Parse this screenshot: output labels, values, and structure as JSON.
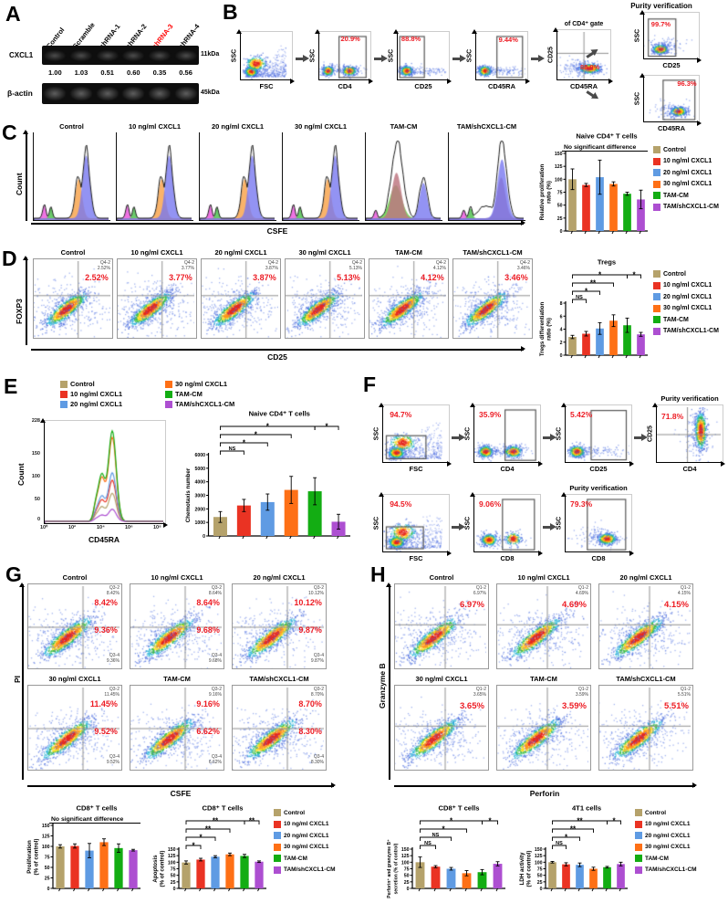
{
  "groups": {
    "names": [
      "Control",
      "10 ng/ml CXCL1",
      "20 ng/ml CXCL1",
      "30 ng/ml CXCL1",
      "TAM-CM",
      "TAM/shCXCL1-CM"
    ],
    "colors": [
      "#b5a26b",
      "#ea3323",
      "#5f9be3",
      "#fe7016",
      "#13ad13",
      "#ad4fd1"
    ]
  },
  "accent": {
    "percent_red": "#ed1c24",
    "highlight_red": "#ff0000"
  },
  "panel_a": {
    "label": "A",
    "lanes": [
      "Control",
      "Scramble",
      "shRNA-1",
      "shRNA-2",
      "shRNA-3",
      "shRNA-4"
    ],
    "band1": {
      "protein": "CXCL1",
      "kda": "11kDa"
    },
    "band2": {
      "protein": "β-actin",
      "kda": "45kDa"
    },
    "values": [
      "1.00",
      "1.03",
      "0.51",
      "0.60",
      "0.35",
      "0.56"
    ]
  },
  "panel_b": {
    "label": "B",
    "purity_title": "Purity verification",
    "plots": [
      {
        "y": "SSC",
        "x": "FSC",
        "pct": ""
      },
      {
        "y": "SSC",
        "x": "CD4",
        "pct": "20.9%"
      },
      {
        "y": "SSC",
        "x": "CD25",
        "pct": "88.8%"
      },
      {
        "y": "SSC",
        "x": "CD45RA",
        "pct": "9.44%"
      },
      {
        "y": "CD25",
        "x": "CD45RA",
        "pct": "88.9%",
        "note": "of CD4⁺ gate"
      },
      {
        "y": "SSC",
        "x": "CD25",
        "pct": "99.7%"
      },
      {
        "y": "SSC",
        "x": "CD45RA",
        "pct": "96.3%"
      }
    ]
  },
  "panel_c": {
    "label": "C",
    "ylabel": "Count",
    "xlabel": "CSFE",
    "plots": [
      {
        "title": "Control",
        "hist": "std"
      },
      {
        "title": "10 ng/ml CXCL1",
        "hist": "std"
      },
      {
        "title": "20 ng/ml CXCL1",
        "hist": "std"
      },
      {
        "title": "30 ng/ml CXCL1",
        "hist": "std"
      },
      {
        "title": "TAM-CM",
        "hist": "tam"
      },
      {
        "title": "TAM/shCXCL1-CM",
        "hist": "shtam"
      }
    ],
    "chart": {
      "type": "bar",
      "title": "Naive CD4⁺ T cells",
      "note": "No significant difference",
      "ylabel": "Relative proliferation\nratio (%)",
      "ymax": 150,
      "ystep": 25,
      "values": [
        100,
        89,
        104,
        91,
        72,
        61
      ],
      "errors": [
        20,
        3,
        33,
        4,
        3,
        18
      ],
      "sig": []
    }
  },
  "panel_d": {
    "label": "D",
    "ylabel": "FOXP3",
    "xlabel": "CD25",
    "plots": [
      {
        "title": "Control",
        "q": "Q4-2",
        "qv": "2.52%",
        "pct": "2.52%"
      },
      {
        "title": "10 ng/ml CXCL1",
        "q": "Q4-2",
        "qv": "3.77%",
        "pct": "3.77%"
      },
      {
        "title": "20 ng/ml CXCL1",
        "q": "Q4-2",
        "qv": "3.87%",
        "pct": "3.87%"
      },
      {
        "title": "30 ng/ml CXCL1",
        "q": "Q4-2",
        "qv": "5.13%",
        "pct": "5.13%"
      },
      {
        "title": "TAM-CM",
        "q": "Q4-2",
        "qv": "4.12%",
        "pct": "4.12%"
      },
      {
        "title": "TAM/shCXCL1-CM",
        "q": "Q4-2",
        "qv": "3.46%",
        "pct": "3.46%"
      }
    ],
    "chart": {
      "type": "bar",
      "title": "Tregs",
      "ylabel": "Tregs differentiation\nratio (%)",
      "ymax": 8,
      "ystep": 2,
      "values": [
        2.8,
        3.3,
        4.1,
        5.3,
        4.6,
        3.2
      ],
      "errors": [
        0.25,
        0.35,
        0.9,
        0.9,
        1.1,
        0.3
      ],
      "sig": [
        {
          "a": 0,
          "b": 1,
          "t": "NS",
          "h": 0
        },
        {
          "a": 0,
          "b": 2,
          "t": "*",
          "h": 1
        },
        {
          "a": 0,
          "b": 3,
          "t": "**",
          "h": 2
        },
        {
          "a": 0,
          "b": 4,
          "t": "*",
          "h": 3
        },
        {
          "a": 4,
          "b": 5,
          "t": "*",
          "h": 3
        }
      ]
    }
  },
  "panel_e": {
    "label": "E",
    "hist": {
      "ylabel": "Count",
      "xlabel": "CD45RA",
      "yticks": [
        "228",
        "150",
        "100",
        "50",
        "0"
      ],
      "xticks": [
        "10⁰",
        "10²",
        "10⁴",
        "10⁶",
        "10⁸"
      ]
    },
    "chart": {
      "type": "bar",
      "title": "Naive CD4⁺ T cells",
      "ylabel": "Chemotaxis number",
      "ymax": 6000,
      "ystep": 1000,
      "values": [
        1400,
        2250,
        2500,
        3400,
        3300,
        1050
      ],
      "errors": [
        400,
        450,
        600,
        1000,
        1000,
        550
      ],
      "sig": [
        {
          "a": 0,
          "b": 1,
          "t": "NS",
          "h": 0
        },
        {
          "a": 0,
          "b": 2,
          "t": "*",
          "h": 1
        },
        {
          "a": 0,
          "b": 3,
          "t": "*",
          "h": 2
        },
        {
          "a": 0,
          "b": 4,
          "t": "*",
          "h": 3
        },
        {
          "a": 4,
          "b": 5,
          "t": "*",
          "h": 3
        }
      ]
    }
  },
  "panel_f": {
    "label": "F",
    "purity_title": "Purity verification",
    "row1": [
      {
        "y": "SSC",
        "x": "FSC",
        "pct": "94.7%"
      },
      {
        "y": "SSC",
        "x": "CD4",
        "pct": "35.9%"
      },
      {
        "y": "SSC",
        "x": "CD25",
        "pct": "5.42%"
      },
      {
        "y": "CD25",
        "x": "CD4",
        "pct": "71.8%"
      }
    ],
    "row2": [
      {
        "y": "SSC",
        "x": "FSC",
        "pct": "94.5%"
      },
      {
        "y": "SSC",
        "x": "CD8",
        "pct": "9.06%"
      },
      {
        "y": "SSC",
        "x": "CD8",
        "pct": "79.3%"
      }
    ]
  },
  "panel_g": {
    "label": "G",
    "ylabel": "PI",
    "xlabel": "CSFE",
    "plots": [
      {
        "title": "Control",
        "q1": "Q3-2",
        "q1v": "8.42%",
        "pct1": "8.42%",
        "q2": "Q3-4",
        "q2v": "9.36%",
        "pct2": "9.36%"
      },
      {
        "title": "10 ng/ml CXCL1",
        "q1": "Q3-2",
        "q1v": "8.64%",
        "pct1": "8.64%",
        "q2": "Q3-4",
        "q2v": "9.68%",
        "pct2": "9.68%"
      },
      {
        "title": "20 ng/ml CXCL1",
        "q1": "Q3-2",
        "q1v": "10.12%",
        "pct1": "10.12%",
        "q2": "Q3-4",
        "q2v": "9.87%",
        "pct2": "9.87%"
      },
      {
        "title": "30 ng/ml CXCL1",
        "q1": "Q3-2",
        "q1v": "11.45%",
        "pct1": "11.45%",
        "q2": "Q3-4",
        "q2v": "9.52%",
        "pct2": "9.52%"
      },
      {
        "title": "TAM-CM",
        "q1": "Q3-2",
        "q1v": "9.16%",
        "pct1": "9.16%",
        "q2": "Q3-4",
        "q2v": "6.62%",
        "pct2": "6.62%"
      },
      {
        "title": "TAM/shCXCL1-CM",
        "q1": "Q3-2",
        "q1v": "8.70%",
        "pct1": "8.70%",
        "q2": "Q3-4",
        "q2v": "8.30%",
        "pct2": "8.30%"
      }
    ],
    "chart1": {
      "type": "bar",
      "title": "CD8⁺ T cells",
      "note": "No significant difference",
      "ylabel": "Proliferation\n(% of control)",
      "ymax": 150,
      "ystep": 25,
      "values": [
        100,
        101,
        90,
        110,
        96,
        91
      ],
      "errors": [
        4,
        5,
        17,
        8,
        10,
        2
      ],
      "sig": []
    },
    "chart2": {
      "type": "bar",
      "title": "CD8⁺ T cells",
      "ylabel": "Apoptosis\n(% of control)",
      "ymax": 150,
      "ystep": 25,
      "values": [
        99,
        110,
        121,
        130,
        124,
        102
      ],
      "errors": [
        6,
        5,
        4,
        5,
        6,
        3
      ],
      "sig": [
        {
          "a": 0,
          "b": 1,
          "t": "*",
          "h": 0
        },
        {
          "a": 0,
          "b": 2,
          "t": "*",
          "h": 1
        },
        {
          "a": 0,
          "b": 3,
          "t": "**",
          "h": 2
        },
        {
          "a": 0,
          "b": 4,
          "t": "**",
          "h": 3
        },
        {
          "a": 4,
          "b": 5,
          "t": "**",
          "h": 3
        }
      ]
    }
  },
  "panel_h": {
    "label": "H",
    "ylabel": "Granzyme B",
    "xlabel": "Perforin",
    "plots": [
      {
        "title": "Control",
        "q": "Q1-2",
        "qv": "6.97%",
        "pct": "6.97%"
      },
      {
        "title": "10 ng/ml CXCL1",
        "q": "Q1-2",
        "qv": "4.69%",
        "pct": "4.69%"
      },
      {
        "title": "20 ng/ml CXCL1",
        "q": "Q1-2",
        "qv": "4.15%",
        "pct": "4.15%"
      },
      {
        "title": "30 ng/ml CXCL1",
        "q": "Q1-2",
        "qv": "3.65%",
        "pct": "3.65%"
      },
      {
        "title": "TAM-CM",
        "q": "Q1-2",
        "qv": "3.59%",
        "pct": "3.59%"
      },
      {
        "title": "TAM/shCXCL1-CM",
        "q": "Q1-2",
        "qv": "5.51%",
        "pct": "5.51%"
      }
    ],
    "chart1": {
      "type": "bar",
      "title": "CD8⁺ T cells",
      "ylabel": "Perforin⁺ and granzyme B⁺\nsecretion (% of control)",
      "ylfs": 5,
      "ymax": 150,
      "ystep": 25,
      "values": [
        100,
        83,
        75,
        58,
        62,
        94
      ],
      "errors": [
        20,
        4,
        5,
        10,
        10,
        8
      ],
      "sig": [
        {
          "a": 0,
          "b": 1,
          "t": "NS",
          "h": 0
        },
        {
          "a": 0,
          "b": 2,
          "t": "NS",
          "h": 1
        },
        {
          "a": 0,
          "b": 3,
          "t": "*",
          "h": 2
        },
        {
          "a": 0,
          "b": 4,
          "t": "*",
          "h": 3
        },
        {
          "a": 4,
          "b": 5,
          "t": "*",
          "h": 3
        }
      ]
    },
    "chart2": {
      "type": "bar",
      "title": "4T1 cells",
      "ylabel": "LDH activity\n(% of control)",
      "ymax": 150,
      "ystep": 25,
      "values": [
        100,
        92,
        90,
        75,
        81,
        93
      ],
      "errors": [
        3,
        6,
        7,
        6,
        3,
        7
      ],
      "sig": [
        {
          "a": 0,
          "b": 1,
          "t": "NS",
          "h": 0
        },
        {
          "a": 0,
          "b": 2,
          "t": "*",
          "h": 1
        },
        {
          "a": 0,
          "b": 3,
          "t": "**",
          "h": 2
        },
        {
          "a": 0,
          "b": 4,
          "t": "**",
          "h": 3
        },
        {
          "a": 4,
          "b": 5,
          "t": "*",
          "h": 3
        }
      ]
    }
  }
}
